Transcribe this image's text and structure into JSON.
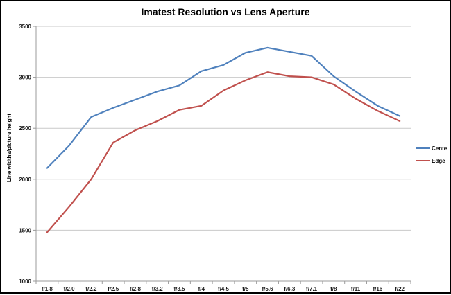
{
  "chart_data": {
    "type": "line",
    "title": "Imatest Resolution vs Lens Aperture",
    "xlabel": "",
    "ylabel": "Line widths/picture height",
    "categories": [
      "f/1.8",
      "f/2.0",
      "f/2.2",
      "f/2.5",
      "f/2.8",
      "f/3.2",
      "f/3.5",
      "f/4",
      "f/4.5",
      "f/5",
      "f/5.6",
      "f/6.3",
      "f/7.1",
      "f/8",
      "f/11",
      "f/16",
      "f/22"
    ],
    "series": [
      {
        "name": "Center",
        "label": "Cente",
        "color": "#4F81BD",
        "values": [
          2110,
          2330,
          2610,
          2700,
          2780,
          2860,
          2920,
          3060,
          3120,
          3240,
          3290,
          3250,
          3210,
          3010,
          2860,
          2720,
          2620
        ]
      },
      {
        "name": "Edge",
        "label": "Edge",
        "color": "#C0504D",
        "values": [
          1480,
          1730,
          2000,
          2360,
          2480,
          2570,
          2680,
          2720,
          2870,
          2970,
          3050,
          3010,
          3000,
          2930,
          2790,
          2670,
          2570
        ]
      }
    ],
    "ylim": [
      1000,
      3500
    ],
    "y_ticks": [
      1000,
      1500,
      2000,
      2500,
      3000,
      3500
    ],
    "grid": "horizontal",
    "legend_position": "right"
  },
  "style": {
    "grid_color": "#C9C9C9",
    "axis_color": "#9B9B9B",
    "tick_text_color": "#1a1a1a",
    "background": "#FFFFFF",
    "frame_color": "#000000"
  }
}
